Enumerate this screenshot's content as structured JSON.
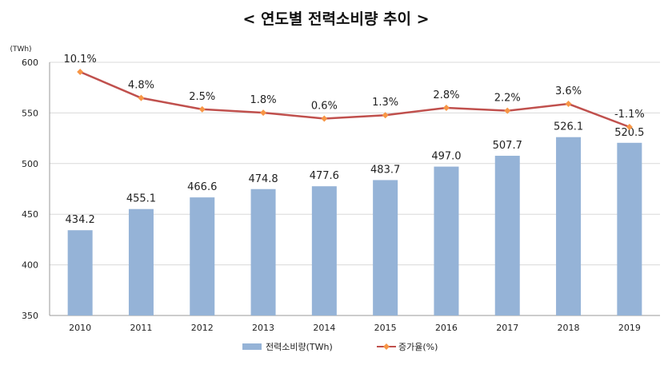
{
  "chart_data": {
    "type": "bar",
    "title": "< 연도별 전력소비량 추이 >",
    "y_unit": "(TWh)",
    "categories": [
      "2010",
      "2011",
      "2012",
      "2013",
      "2014",
      "2015",
      "2016",
      "2017",
      "2018",
      "2019"
    ],
    "ylim": [
      350,
      600
    ],
    "yticks": [
      350,
      400,
      450,
      500,
      550,
      600
    ],
    "series": [
      {
        "name": "전력소비량(TWh)",
        "type": "bar",
        "color": "#95B3D7",
        "values": [
          434.2,
          455.1,
          466.6,
          474.8,
          477.6,
          483.7,
          497.0,
          507.7,
          526.1,
          520.5
        ],
        "labels": [
          "434.2",
          "455.1",
          "466.6",
          "474.8",
          "477.6",
          "483.7",
          "497.0",
          "507.7",
          "526.1",
          "520.5"
        ]
      },
      {
        "name": "증가율(%)",
        "type": "line",
        "color": "#C0504D",
        "marker_color": "#F79646",
        "values": [
          10.1,
          4.8,
          2.5,
          1.8,
          0.6,
          1.3,
          2.8,
          2.2,
          3.6,
          -1.1
        ],
        "labels": [
          "10.1%",
          "4.8%",
          "2.5%",
          "1.8%",
          "0.6%",
          "1.3%",
          "2.8%",
          "2.2%",
          "3.6%",
          "-1.1%"
        ]
      }
    ],
    "grid": true,
    "legend_position": "bottom"
  }
}
